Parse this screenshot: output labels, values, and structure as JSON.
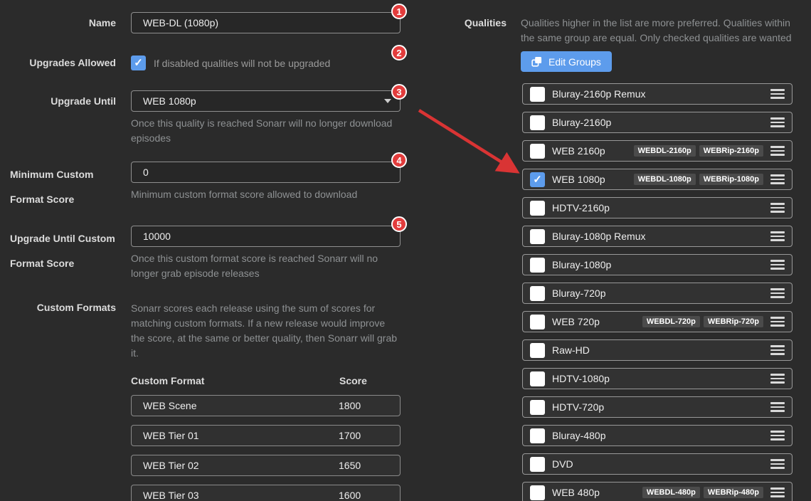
{
  "form": {
    "name": {
      "label": "Name",
      "value": "WEB-DL (1080p)"
    },
    "upgrades_allowed": {
      "label": "Upgrades Allowed",
      "checked": true,
      "hint": "If disabled qualities will not be upgraded"
    },
    "upgrade_until": {
      "label": "Upgrade Until",
      "value": "WEB 1080p",
      "help": "Once this quality is reached Sonarr will no longer download episodes"
    },
    "min_custom_format_score": {
      "label_line1": "Minimum Custom",
      "label_line2": "Format Score",
      "value": "0",
      "help": "Minimum custom format score allowed to download"
    },
    "upgrade_until_custom_format_score": {
      "label_line1": "Upgrade Until Custom",
      "label_line2": "Format Score",
      "value": "10000",
      "help": "Once this custom format score is reached Sonarr will no longer grab episode releases"
    },
    "custom_formats": {
      "label": "Custom Formats",
      "description": "Sonarr scores each release using the sum of scores for matching custom formats. If a new release would improve the score, at the same or better quality, then Sonarr will grab it.",
      "columns": {
        "format": "Custom Format",
        "score": "Score"
      },
      "items": [
        {
          "name": "WEB Scene",
          "score": "1800"
        },
        {
          "name": "WEB Tier 01",
          "score": "1700"
        },
        {
          "name": "WEB Tier 02",
          "score": "1650"
        },
        {
          "name": "WEB Tier 03",
          "score": "1600"
        }
      ]
    }
  },
  "qualities": {
    "label": "Qualities",
    "description": "Qualities higher in the list are more preferred. Qualities within the same group are equal. Only checked qualities are wanted",
    "edit_groups_label": "Edit Groups",
    "items": [
      {
        "name": "Bluray-2160p Remux",
        "checked": false,
        "badges": []
      },
      {
        "name": "Bluray-2160p",
        "checked": false,
        "badges": []
      },
      {
        "name": "WEB 2160p",
        "checked": false,
        "badges": [
          "WEBDL-2160p",
          "WEBRip-2160p"
        ]
      },
      {
        "name": "WEB 1080p",
        "checked": true,
        "badges": [
          "WEBDL-1080p",
          "WEBRip-1080p"
        ]
      },
      {
        "name": "HDTV-2160p",
        "checked": false,
        "badges": []
      },
      {
        "name": "Bluray-1080p Remux",
        "checked": false,
        "badges": []
      },
      {
        "name": "Bluray-1080p",
        "checked": false,
        "badges": []
      },
      {
        "name": "Bluray-720p",
        "checked": false,
        "badges": []
      },
      {
        "name": "WEB 720p",
        "checked": false,
        "badges": [
          "WEBDL-720p",
          "WEBRip-720p"
        ]
      },
      {
        "name": "Raw-HD",
        "checked": false,
        "badges": []
      },
      {
        "name": "HDTV-1080p",
        "checked": false,
        "badges": []
      },
      {
        "name": "HDTV-720p",
        "checked": false,
        "badges": []
      },
      {
        "name": "Bluray-480p",
        "checked": false,
        "badges": []
      },
      {
        "name": "DVD",
        "checked": false,
        "badges": []
      },
      {
        "name": "WEB 480p",
        "checked": false,
        "badges": [
          "WEBDL-480p",
          "WEBRip-480p"
        ]
      }
    ]
  },
  "annotations": {
    "numbers": [
      "1",
      "2",
      "3",
      "4",
      "5"
    ]
  },
  "icons": {
    "edit_groups_icon": "object-group",
    "drag_handle_icon": "hamburger-bars",
    "select_caret_icon": "chevron-down",
    "checkbox_check_icon": "check"
  },
  "colors": {
    "accent_blue": "#5d9cec",
    "annotation_red": "#e23c3c",
    "background": "#2b2b2b"
  }
}
